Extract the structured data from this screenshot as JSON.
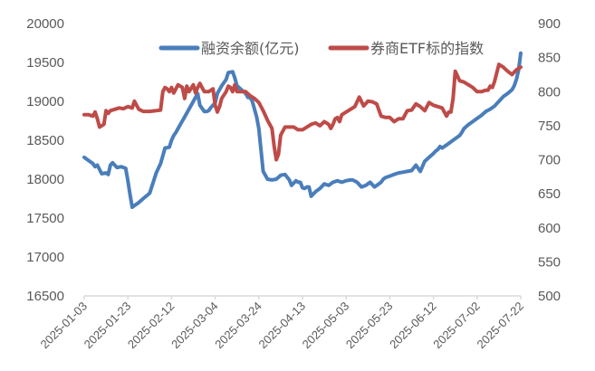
{
  "chart_data": {
    "type": "line",
    "title": "",
    "xlabel": "",
    "ylabel_left": "",
    "ylabel_right": "",
    "x_ticks": [
      "2025-01-03",
      "2025-01-23",
      "2025-02-12",
      "2025-03-04",
      "2025-03-24",
      "2025-04-13",
      "2025-05-03",
      "2025-05-23",
      "2025-06-12",
      "2025-07-02",
      "2025-07-22"
    ],
    "y_left_ticks": [
      16500,
      17000,
      17500,
      18000,
      18500,
      19000,
      19500,
      20000
    ],
    "y_right_ticks": [
      500,
      550,
      600,
      650,
      700,
      750,
      800,
      850,
      900
    ],
    "ylim_left": [
      16500,
      20000
    ],
    "ylim_right": [
      500,
      900
    ],
    "grid": false,
    "legend_position": "top",
    "series": [
      {
        "name": "融资余额(亿元)",
        "axis": "left",
        "color": "#4a7ebb",
        "x_days": [
          0,
          2,
          4,
          5,
          6,
          8,
          10,
          11,
          12,
          13,
          15,
          17,
          19,
          20,
          21,
          22,
          23,
          25,
          27,
          30,
          33,
          35,
          36,
          37,
          39,
          40,
          41,
          42,
          44,
          46,
          48,
          50,
          52,
          53,
          55,
          56,
          57,
          58,
          60,
          61,
          63,
          65,
          66,
          68,
          69,
          70,
          72,
          74,
          75,
          76,
          77,
          78,
          79,
          80,
          82,
          84,
          86,
          88,
          90,
          92,
          94,
          95,
          96,
          97,
          98,
          99,
          100,
          101,
          102,
          103,
          104,
          106,
          108,
          110,
          112,
          114,
          115,
          116,
          117,
          118,
          120,
          122,
          123,
          125,
          127,
          129,
          131,
          133,
          135,
          136,
          137,
          138,
          140,
          142,
          144,
          146,
          148,
          150,
          152,
          154,
          156,
          158,
          160,
          161,
          162,
          163,
          164,
          166,
          168,
          170,
          172,
          173,
          174,
          176,
          178,
          180,
          182,
          184,
          186,
          188,
          190,
          192,
          194,
          196,
          197,
          198,
          199,
          200
        ],
        "values": [
          18280,
          18240,
          18200,
          18160,
          18180,
          18070,
          18080,
          18060,
          18180,
          18210,
          18150,
          18160,
          18140,
          17980,
          17800,
          17640,
          17660,
          17700,
          17750,
          17820,
          18080,
          18200,
          18300,
          18400,
          18410,
          18500,
          18560,
          18600,
          18700,
          18800,
          18900,
          19000,
          19100,
          18950,
          18870,
          18870,
          18880,
          18920,
          18980,
          19100,
          19200,
          19280,
          19370,
          19380,
          19300,
          19200,
          19150,
          19100,
          19050,
          19050,
          19000,
          18900,
          18800,
          18650,
          18100,
          18000,
          17990,
          18000,
          18050,
          18060,
          17990,
          17920,
          17950,
          17980,
          17960,
          17960,
          17890,
          17880,
          17900,
          17900,
          17780,
          17840,
          17880,
          17940,
          17920,
          17960,
          17970,
          17980,
          17970,
          17960,
          17980,
          17990,
          17990,
          17960,
          17900,
          17920,
          17960,
          17900,
          17940,
          17960,
          18000,
          18020,
          18040,
          18060,
          18080,
          18090,
          18100,
          18110,
          18180,
          18100,
          18230,
          18280,
          18330,
          18360,
          18380,
          18420,
          18400,
          18440,
          18480,
          18520,
          18560,
          18600,
          18650,
          18700,
          18740,
          18780,
          18820,
          18870,
          18900,
          18940,
          19000,
          19060,
          19100,
          19150,
          19200,
          19280,
          19400,
          19620
        ]
      },
      {
        "name": "券商ETF标的指数",
        "axis": "right",
        "color": "#be4b48",
        "x_days": [
          0,
          2,
          4,
          5,
          6,
          7,
          8,
          9,
          10,
          11,
          12,
          14,
          16,
          18,
          20,
          22,
          23,
          24,
          25,
          27,
          30,
          33,
          35,
          36,
          37,
          38,
          39,
          40,
          41,
          43,
          45,
          46,
          47,
          48,
          50,
          51,
          52,
          53,
          54,
          55,
          57,
          59,
          60,
          61,
          62,
          63,
          65,
          66,
          67,
          68,
          69,
          70,
          72,
          74,
          76,
          78,
          80,
          82,
          84,
          86,
          87,
          88,
          89,
          90,
          92,
          94,
          96,
          98,
          100,
          102,
          104,
          106,
          108,
          110,
          112,
          113,
          114,
          115,
          116,
          117,
          118,
          120,
          122,
          124,
          126,
          128,
          130,
          132,
          134,
          136,
          138,
          140,
          142,
          144,
          146,
          148,
          150,
          152,
          154,
          156,
          158,
          160,
          162,
          164,
          166,
          167,
          168,
          169,
          170,
          172,
          174,
          176,
          178,
          180,
          182,
          184,
          185,
          186,
          187,
          188,
          190,
          192,
          194,
          196,
          198,
          200
        ],
        "values": [
          766,
          766,
          764,
          770,
          760,
          748,
          750,
          752,
          772,
          768,
          772,
          774,
          776,
          775,
          778,
          776,
          786,
          780,
          774,
          771,
          771,
          772,
          773,
          800,
          806,
          804,
          800,
          806,
          798,
          810,
          806,
          790,
          808,
          800,
          810,
          798,
          806,
          812,
          806,
          800,
          800,
          804,
          780,
          770,
          778,
          790,
          800,
          808,
          806,
          800,
          810,
          800,
          800,
          800,
          794,
          790,
          784,
          772,
          758,
          746,
          720,
          700,
          708,
          736,
          748,
          748,
          748,
          744,
          744,
          748,
          752,
          754,
          750,
          756,
          752,
          746,
          752,
          760,
          762,
          756,
          766,
          770,
          774,
          778,
          792,
          779,
          786,
          785,
          782,
          764,
          762,
          762,
          756,
          760,
          760,
          772,
          773,
          782,
          778,
          772,
          784,
          780,
          778,
          776,
          764,
          770,
          770,
          790,
          830,
          816,
          814,
          810,
          806,
          800,
          800,
          802,
          802,
          808,
          806,
          815,
          840,
          836,
          830,
          825,
          832,
          836,
          840
        ]
      }
    ]
  },
  "legend": {
    "items": [
      {
        "label": "融资余额(亿元)",
        "color": "#4a7ebb"
      },
      {
        "label": "券商ETF标的指数",
        "color": "#be4b48"
      }
    ]
  }
}
